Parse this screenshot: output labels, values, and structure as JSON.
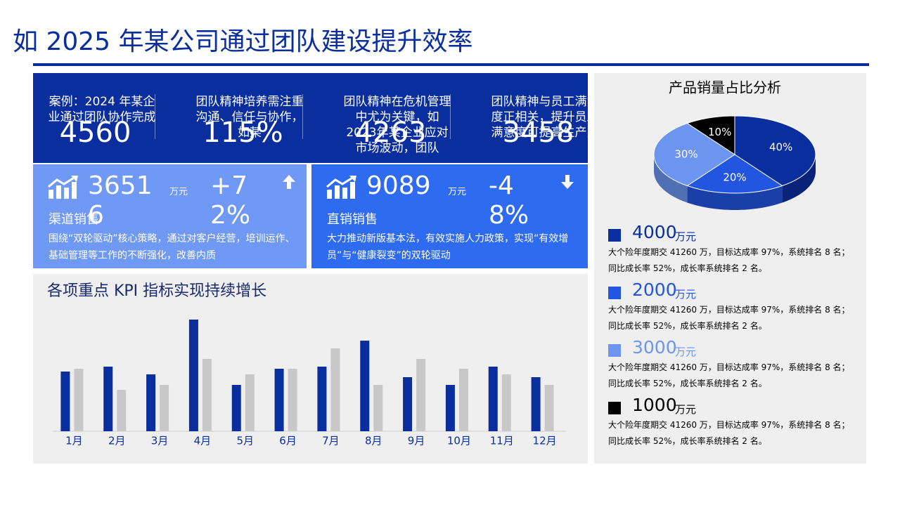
{
  "title": "如 2025 年某公司通过团队建设提升效率",
  "highlights": [
    {
      "text": "案例：2024 年某企业通过团队协作完成",
      "number": "4560"
    },
    {
      "text": "团队精神培养需注重沟通、信任与协作，如某",
      "number": "115%"
    },
    {
      "text": "团队精神在危机管理中尤为关键，如2023年某企业应对市场波动，团队",
      "number": "4263"
    },
    {
      "text": "团队精神与员工满意度正相关，提升员工满意度可提高生产力",
      "number": "3458"
    }
  ],
  "cards": [
    {
      "value": "36516",
      "unit": "万元",
      "change": "+72%",
      "label": "渠道销售",
      "text": "围绕“双轮驱动”核心策略，通过对客户经营，培训运作、基础管理等工作的不断强化，改善内质"
    },
    {
      "value": "9089",
      "unit": "万元",
      "change": "-48%",
      "label": "直销销售",
      "text": "大力推动新版基本法，有效实施人力政策，实现“有效增员”与“健康裂变”的双轮驱动"
    }
  ],
  "chart_data": [
    {
      "type": "bar",
      "title": "各项重点 KPI 指标实现持续增长",
      "categories": [
        "1月",
        "2月",
        "3月",
        "4月",
        "5月",
        "6月",
        "7月",
        "8月",
        "9月",
        "10月",
        "11月",
        "12月"
      ],
      "series": [
        {
          "color": "#0a2e9e",
          "values": [
            85,
            92,
            81,
            159,
            66,
            89,
            92,
            129,
            77,
            66,
            92,
            77
          ]
        },
        {
          "color": "#c8c8c8",
          "values": [
            89,
            59,
            66,
            103,
            81,
            89,
            118,
            66,
            103,
            89,
            81,
            66
          ]
        }
      ],
      "ylim": [
        0,
        174
      ]
    },
    {
      "type": "pie",
      "title": "产品销量占比分析",
      "values": [
        40,
        20,
        30,
        10
      ],
      "value_labels": [
        "40%",
        "20%",
        "30%",
        "10%"
      ],
      "colors": [
        "#0a2e9e",
        "#2255e0",
        "#6c95f0",
        "#000000"
      ]
    }
  ],
  "legend": [
    {
      "value": "4000",
      "unit": "万元",
      "color": "#0a2e9e",
      "text": "大个险年度期交 41260 万，目标达成率 97%，系统排名 8 名；同比成长率 52%，成长率系统排名 2 名。"
    },
    {
      "value": "2000",
      "unit": "万元",
      "color": "#2255e0",
      "text": "大个险年度期交 41260 万，目标达成率 97%，系统排名 8 名；同比成长率 52%，成长率系统排名 2 名。"
    },
    {
      "value": "3000",
      "unit": "万元",
      "color": "#6c95f0",
      "text": "大个险年度期交 41260 万，目标达成率 97%，系统排名 8 名；同比成长率 52%，成长率系统排名 2 名。"
    },
    {
      "value": "1000",
      "unit": "万元",
      "color": "#000000",
      "text": "大个险年度期交 41260 万，目标达成率 97%，系统排名 8 名；同比成长率 52%，成长率系统排名 2 名。"
    }
  ]
}
